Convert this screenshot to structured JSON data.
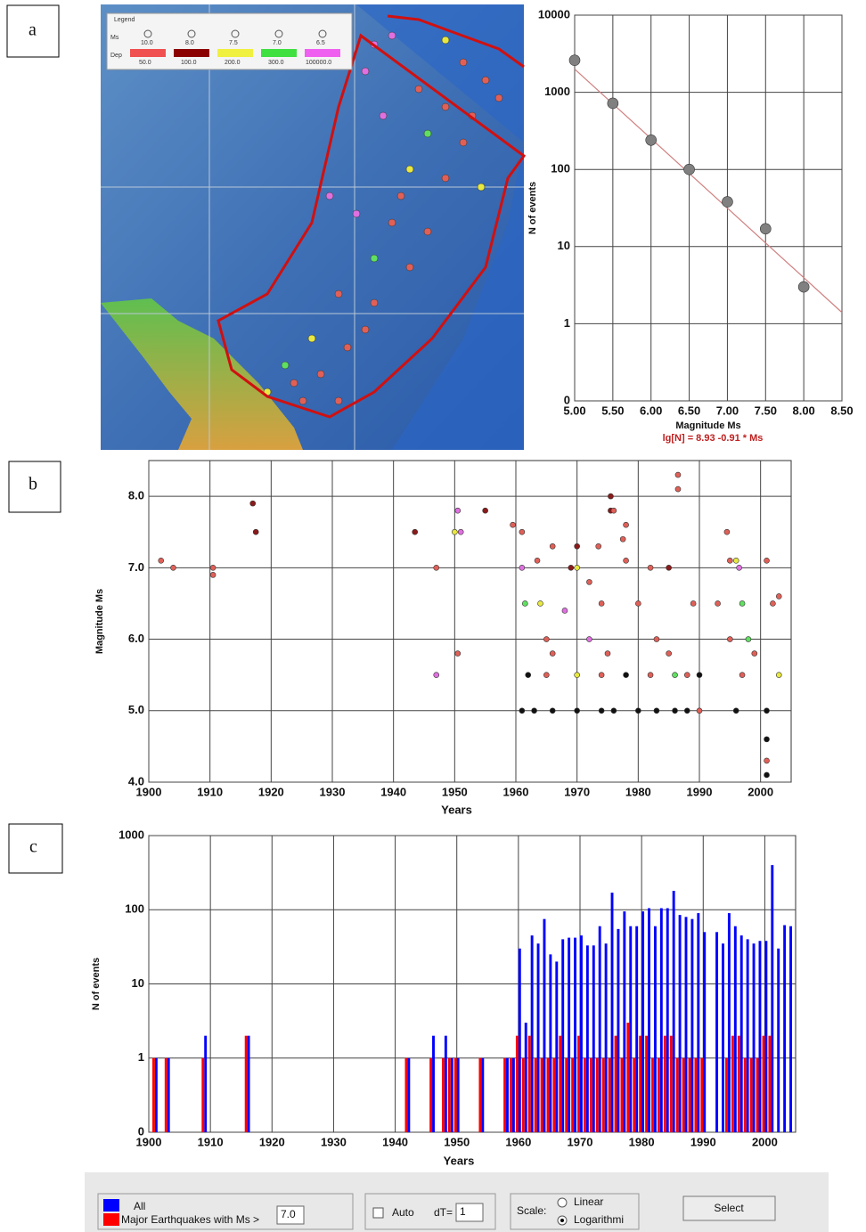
{
  "panel_labels": [
    "a",
    "b",
    "c"
  ],
  "map_legend": {
    "title": "Legend",
    "ms_label": "Ms",
    "dep_label": "Dep",
    "ms": [
      "10.0",
      "8.0",
      "7.5",
      "7.0",
      "6.5"
    ],
    "dep": [
      "50.0",
      "100.0",
      "200.0",
      "300.0",
      "100000.0"
    ]
  },
  "controls": {
    "major_threshold": "7.0",
    "auto": "Auto",
    "dt_label": "dT=",
    "dt": "1",
    "scale_label": "Scale:",
    "linear": "Linear",
    "log": "Logarithmi",
    "select": "Select"
  },
  "chart_data": [
    {
      "type": "scatter",
      "x": [
        5,
        5.5,
        6,
        6.5,
        7,
        7.5,
        8
      ],
      "values": [
        2600,
        720,
        240,
        100,
        38,
        17,
        3
      ],
      "color": "#808080",
      "ylog": true,
      "xlim": [
        5,
        8.5
      ],
      "ylim": [
        0.1,
        10000
      ],
      "xticks": [
        {
          "value": 5,
          "label": "5.00"
        },
        {
          "value": 5.5,
          "label": "5.50"
        },
        {
          "value": 6,
          "label": "6.00"
        },
        {
          "value": 6.5,
          "label": "6.50"
        },
        {
          "value": 7,
          "label": "7.00"
        },
        {
          "value": 7.5,
          "label": "7.50"
        },
        {
          "value": 8,
          "label": "8.00"
        },
        {
          "value": 8.5,
          "label": "8.50"
        }
      ],
      "yticks": [
        {
          "value": 0.1,
          "label": "0"
        },
        1,
        10,
        100,
        1000,
        10000
      ],
      "xlabel": "Magnitude Ms",
      "ylabel": "N of events",
      "annotation": "lg[N] = 8.93 -0.91 * Ms",
      "fit": {
        "x": [
          5,
          8.5
        ],
        "values": [
          2000,
          1.4
        ],
        "color": "#d08080"
      },
      "grid": true
    },
    {
      "type": "scatter",
      "xlim": [
        1900,
        2005
      ],
      "ylim": [
        4,
        8.5
      ],
      "xticks": [
        1900,
        1910,
        1920,
        1930,
        1940,
        1950,
        1960,
        1970,
        1980,
        1990,
        2000
      ],
      "yticks": [
        {
          "value": 4,
          "label": "4.0"
        },
        {
          "value": 5,
          "label": "5.0"
        },
        {
          "value": 6,
          "label": "6.0"
        },
        {
          "value": 7,
          "label": "7.0"
        },
        {
          "value": 8,
          "label": "8.0"
        }
      ],
      "xlabel": "Years",
      "ylabel": "Magnitude Ms",
      "grid": true,
      "x": [
        1902,
        1904,
        1910.5,
        1910.5,
        1917,
        1917.5,
        1943.5,
        1947,
        1947,
        1950,
        1950.5,
        1951,
        1950.5,
        1955,
        1959.5,
        1961,
        1961,
        1961.5,
        1963.5,
        1966,
        1969,
        1970,
        1970,
        1972,
        1973.5,
        1975.5,
        1975.5,
        1976,
        1978,
        1977.5,
        1978,
        1982,
        1985,
        1986.5,
        1986.5,
        1994.5,
        1995,
        1996,
        1996.5,
        2001,
        2003,
        1964,
        1968,
        1974,
        1980,
        1989,
        1993,
        1997,
        2002,
        1965,
        1972,
        1983,
        1995,
        1998,
        1966,
        1975,
        1985,
        1999,
        1962,
        1965,
        1970,
        1974,
        1978,
        1982,
        1986,
        1988,
        1990,
        1997,
        2003,
        1961,
        1963,
        1966,
        1970,
        1974,
        1976,
        1980,
        1983,
        1986,
        1988,
        1990,
        1996,
        2001,
        2001,
        2001,
        2001
      ],
      "values": [
        7.1,
        7.0,
        7.0,
        6.9,
        7.9,
        7.5,
        7.5,
        7.0,
        5.5,
        7.5,
        7.8,
        7.5,
        5.8,
        7.8,
        7.6,
        7.5,
        7.0,
        6.5,
        7.1,
        7.3,
        7.0,
        7.0,
        7.3,
        6.8,
        7.3,
        8.0,
        7.8,
        7.8,
        7.6,
        7.4,
        7.1,
        7.0,
        7.0,
        8.3,
        8.1,
        7.5,
        7.1,
        7.1,
        7.0,
        7.1,
        6.6,
        6.5,
        6.4,
        6.5,
        6.5,
        6.5,
        6.5,
        6.5,
        6.5,
        6.0,
        6.0,
        6.0,
        6.0,
        6.0,
        5.8,
        5.8,
        5.8,
        5.8,
        5.5,
        5.5,
        5.5,
        5.5,
        5.5,
        5.5,
        5.5,
        5.5,
        5.5,
        5.5,
        5.5,
        5.0,
        5.0,
        5.0,
        5.0,
        5.0,
        5.0,
        5.0,
        5.0,
        5.0,
        5.0,
        5.0,
        5.0,
        5.0,
        4.6,
        4.3,
        4.1
      ],
      "colors": [
        "#e06058",
        "#e06058",
        "#e06058",
        "#e06058",
        "#8b1a1a",
        "#8b1a1a",
        "#8b1a1a",
        "#e06058",
        "#e070e0",
        "#e8e840",
        "#e070e0",
        "#e070e0",
        "#e06058",
        "#8b1a1a",
        "#e06058",
        "#e06058",
        "#e070e0",
        "#60e060",
        "#e06058",
        "#e06058",
        "#8b1a1a",
        "#e8e840",
        "#8b1a1a",
        "#e06058",
        "#e06058",
        "#8b1a1a",
        "#8b1a1a",
        "#e06058",
        "#e06058",
        "#e06058",
        "#e06058",
        "#e06058",
        "#8b1a1a",
        "#e06058",
        "#e06058",
        "#e06058",
        "#e06058",
        "#e8e840",
        "#e070e0",
        "#e06058",
        "#e06058",
        "#e8e840",
        "#e070e0",
        "#e06058",
        "#e06058",
        "#e06058",
        "#e06058",
        "#60e060",
        "#e06058",
        "#e06058",
        "#e070e0",
        "#e06058",
        "#e06058",
        "#60e060",
        "#e06058",
        "#e06058",
        "#e06058",
        "#e06058",
        "#111111",
        "#e06058",
        "#e8e840",
        "#e06058",
        "#111111",
        "#e06058",
        "#60e060",
        "#e06058",
        "#111111",
        "#e06058",
        "#e8e840",
        "#111111",
        "#111111",
        "#111111",
        "#111111",
        "#111111",
        "#111111",
        "#111111",
        "#111111",
        "#111111",
        "#111111",
        "#e06058",
        "#111111",
        "#111111",
        "#111111",
        "#e06058",
        "#111111"
      ]
    },
    {
      "type": "bar",
      "ylog": true,
      "xlim": [
        1900,
        2005
      ],
      "ylim": [
        0.1,
        1000
      ],
      "xticks": [
        1900,
        1910,
        1920,
        1930,
        1940,
        1950,
        1960,
        1970,
        1980,
        1990,
        2000
      ],
      "yticks": [
        {
          "value": 0.1,
          "label": "0"
        },
        1,
        10,
        100,
        1000
      ],
      "xlabel": "Years",
      "ylabel": "N of events",
      "grid": true,
      "x": [
        1901,
        1903,
        1909,
        1916,
        1942,
        1946,
        1948,
        1949,
        1950,
        1954,
        1958,
        1959,
        1960,
        1961,
        1962,
        1963,
        1964,
        1965,
        1966,
        1967,
        1968,
        1969,
        1970,
        1971,
        1972,
        1973,
        1974,
        1975,
        1976,
        1977,
        1978,
        1979,
        1980,
        1981,
        1982,
        1983,
        1984,
        1985,
        1986,
        1987,
        1988,
        1989,
        1990,
        1992,
        1993,
        1994,
        1995,
        1996,
        1997,
        1998,
        1999,
        2000,
        2001,
        2002,
        2003,
        2004
      ],
      "series": [
        {
          "name": "All",
          "color": "#0000ff",
          "values": [
            1,
            1,
            2,
            2,
            1,
            2,
            2,
            1,
            1,
            1,
            1,
            1,
            30,
            3,
            45,
            35,
            75,
            25,
            20,
            40,
            42,
            42,
            45,
            33,
            33,
            60,
            35,
            170,
            55,
            95,
            60,
            60,
            95,
            105,
            60,
            105,
            105,
            180,
            85,
            80,
            75,
            90,
            50,
            50,
            35,
            90,
            60,
            45,
            40,
            35,
            38,
            38,
            400,
            30,
            62,
            60
          ]
        },
        {
          "name": "Major Earthquakes with Ms >",
          "color": "#ff0000",
          "values": [
            1,
            1,
            1,
            2,
            1,
            1,
            1,
            1,
            1,
            1,
            1,
            1,
            2,
            1,
            2,
            1,
            1,
            1,
            1,
            2,
            1,
            1,
            2,
            1,
            1,
            1,
            1,
            1,
            2,
            1,
            3,
            1,
            2,
            2,
            1,
            1,
            2,
            2,
            1,
            1,
            1,
            1,
            1,
            0,
            0,
            1,
            2,
            2,
            1,
            1,
            1,
            2,
            2,
            0,
            0,
            0
          ]
        }
      ]
    }
  ]
}
